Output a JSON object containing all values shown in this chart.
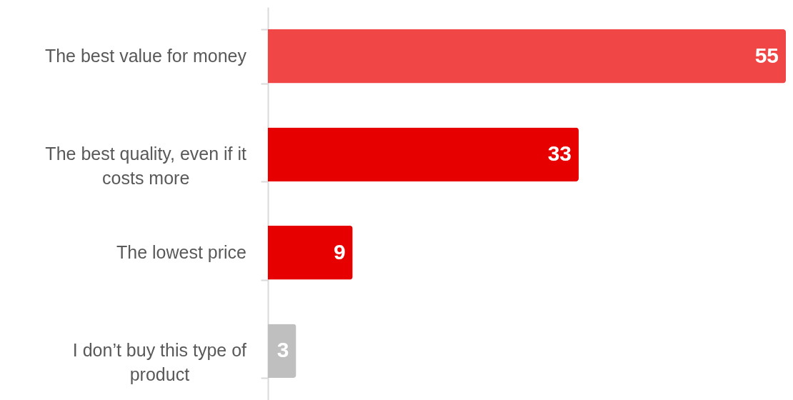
{
  "chart_data": {
    "type": "bar",
    "orientation": "horizontal",
    "categories": [
      "The best value for money",
      "The best quality, even if it costs more",
      "The lowest price",
      "I don’t buy this type of product"
    ],
    "values": [
      55,
      33,
      9,
      3
    ],
    "colors": [
      "#f14646",
      "#e60000",
      "#e60000",
      "#bfbfbf"
    ],
    "data_labels": true
  }
}
